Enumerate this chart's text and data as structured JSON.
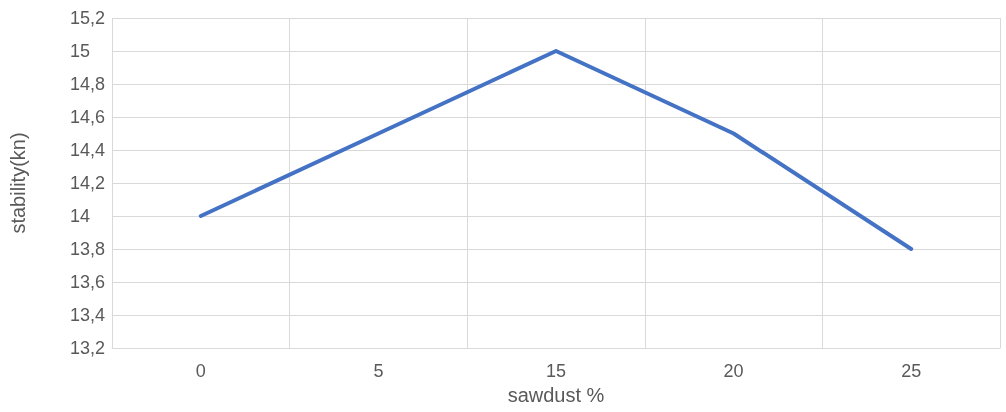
{
  "chart_data": {
    "type": "line",
    "xlabel": "sawdust %",
    "ylabel": "stability(kn)",
    "categories": [
      "0",
      "5",
      "15",
      "20",
      "25"
    ],
    "series": [
      {
        "color": "#4472c4",
        "values": [
          14,
          14.5,
          15,
          14.5,
          13.8
        ]
      }
    ],
    "ylim": [
      13.2,
      15.2
    ],
    "yticks": [
      {
        "value": 13.2,
        "label": "13,2"
      },
      {
        "value": 13.4,
        "label": "13,4"
      },
      {
        "value": 13.6,
        "label": "13,6"
      },
      {
        "value": 13.8,
        "label": "13,8"
      },
      {
        "value": 14,
        "label": "14"
      },
      {
        "value": 14.2,
        "label": "14,2"
      },
      {
        "value": 14.4,
        "label": "14,4"
      },
      {
        "value": 14.6,
        "label": "14,6"
      },
      {
        "value": 14.8,
        "label": "14,8"
      },
      {
        "value": 15,
        "label": "15"
      },
      {
        "value": 15.2,
        "label": "15,2"
      }
    ],
    "grid": true,
    "marker": "none",
    "line_style": "solid"
  }
}
